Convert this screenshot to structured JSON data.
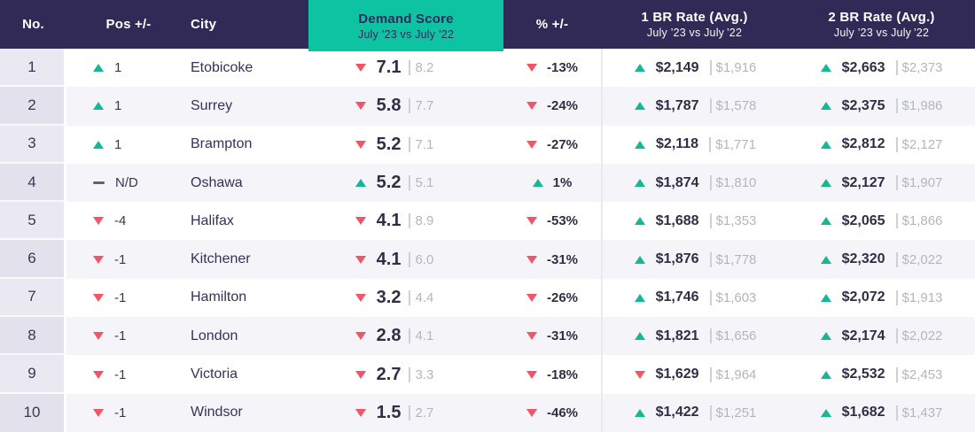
{
  "colors": {
    "header_bg": "#322a56",
    "accent_teal": "#0dc3a2",
    "up_green": "#15b893",
    "down_red": "#f15566",
    "row_alt_bg": "#f5f5f9",
    "muted_prev_value": "#b2b6c2"
  },
  "header": {
    "no": "No.",
    "pos": "Pos +/-",
    "city": "City",
    "demand_title": "Demand Score",
    "demand_subtitle": "July ’23 vs July ’22",
    "pct": "% +/-",
    "br1_title": "1 BR Rate (Avg.)",
    "br1_subtitle": "July ’23 vs July ’22",
    "br2_title": "2 BR Rate (Avg.)",
    "br2_subtitle": "July ’23 vs July ’22"
  },
  "rows": [
    {
      "no": "1",
      "pos_dir": "up",
      "pos": "1",
      "city": "Etobicoke",
      "score_dir": "down",
      "score": "7.1",
      "score_prev": "8.2",
      "pct_dir": "down",
      "pct": "-13%",
      "br1_dir": "up",
      "br1": "$2,149",
      "br1_prev": "$1,916",
      "br2_dir": "up",
      "br2": "$2,663",
      "br2_prev": "$2,373"
    },
    {
      "no": "2",
      "pos_dir": "up",
      "pos": "1",
      "city": "Surrey",
      "score_dir": "down",
      "score": "5.8",
      "score_prev": "7.7",
      "pct_dir": "down",
      "pct": "-24%",
      "br1_dir": "up",
      "br1": "$1,787",
      "br1_prev": "$1,578",
      "br2_dir": "up",
      "br2": "$2,375",
      "br2_prev": "$1,986"
    },
    {
      "no": "3",
      "pos_dir": "up",
      "pos": "1",
      "city": "Brampton",
      "score_dir": "down",
      "score": "5.2",
      "score_prev": "7.1",
      "pct_dir": "down",
      "pct": "-27%",
      "br1_dir": "up",
      "br1": "$2,118",
      "br1_prev": "$1,771",
      "br2_dir": "up",
      "br2": "$2,812",
      "br2_prev": "$2,127"
    },
    {
      "no": "4",
      "pos_dir": "flat",
      "pos": "N/D",
      "city": "Oshawa",
      "score_dir": "up",
      "score": "5.2",
      "score_prev": "5.1",
      "pct_dir": "up",
      "pct": "1%",
      "br1_dir": "up",
      "br1": "$1,874",
      "br1_prev": "$1,810",
      "br2_dir": "up",
      "br2": "$2,127",
      "br2_prev": "$1,907"
    },
    {
      "no": "5",
      "pos_dir": "down",
      "pos": "-4",
      "city": "Halifax",
      "score_dir": "down",
      "score": "4.1",
      "score_prev": "8.9",
      "pct_dir": "down",
      "pct": "-53%",
      "br1_dir": "up",
      "br1": "$1,688",
      "br1_prev": "$1,353",
      "br2_dir": "up",
      "br2": "$2,065",
      "br2_prev": "$1,866"
    },
    {
      "no": "6",
      "pos_dir": "down",
      "pos": "-1",
      "city": "Kitchener",
      "score_dir": "down",
      "score": "4.1",
      "score_prev": "6.0",
      "pct_dir": "down",
      "pct": "-31%",
      "br1_dir": "up",
      "br1": "$1,876",
      "br1_prev": "$1,778",
      "br2_dir": "up",
      "br2": "$2,320",
      "br2_prev": "$2,022"
    },
    {
      "no": "7",
      "pos_dir": "down",
      "pos": "-1",
      "city": "Hamilton",
      "score_dir": "down",
      "score": "3.2",
      "score_prev": "4.4",
      "pct_dir": "down",
      "pct": "-26%",
      "br1_dir": "up",
      "br1": "$1,746",
      "br1_prev": "$1,603",
      "br2_dir": "up",
      "br2": "$2,072",
      "br2_prev": "$1,913"
    },
    {
      "no": "8",
      "pos_dir": "down",
      "pos": "-1",
      "city": "London",
      "score_dir": "down",
      "score": "2.8",
      "score_prev": "4.1",
      "pct_dir": "down",
      "pct": "-31%",
      "br1_dir": "up",
      "br1": "$1,821",
      "br1_prev": "$1,656",
      "br2_dir": "up",
      "br2": "$2,174",
      "br2_prev": "$2,022"
    },
    {
      "no": "9",
      "pos_dir": "down",
      "pos": "-1",
      "city": "Victoria",
      "score_dir": "down",
      "score": "2.7",
      "score_prev": "3.3",
      "pct_dir": "down",
      "pct": "-18%",
      "br1_dir": "down",
      "br1": "$1,629",
      "br1_prev": "$1,964",
      "br2_dir": "up",
      "br2": "$2,532",
      "br2_prev": "$2,453"
    },
    {
      "no": "10",
      "pos_dir": "down",
      "pos": "-1",
      "city": "Windsor",
      "score_dir": "down",
      "score": "1.5",
      "score_prev": "2.7",
      "pct_dir": "down",
      "pct": "-46%",
      "br1_dir": "up",
      "br1": "$1,422",
      "br1_prev": "$1,251",
      "br2_dir": "up",
      "br2": "$1,682",
      "br2_prev": "$1,437"
    }
  ]
}
